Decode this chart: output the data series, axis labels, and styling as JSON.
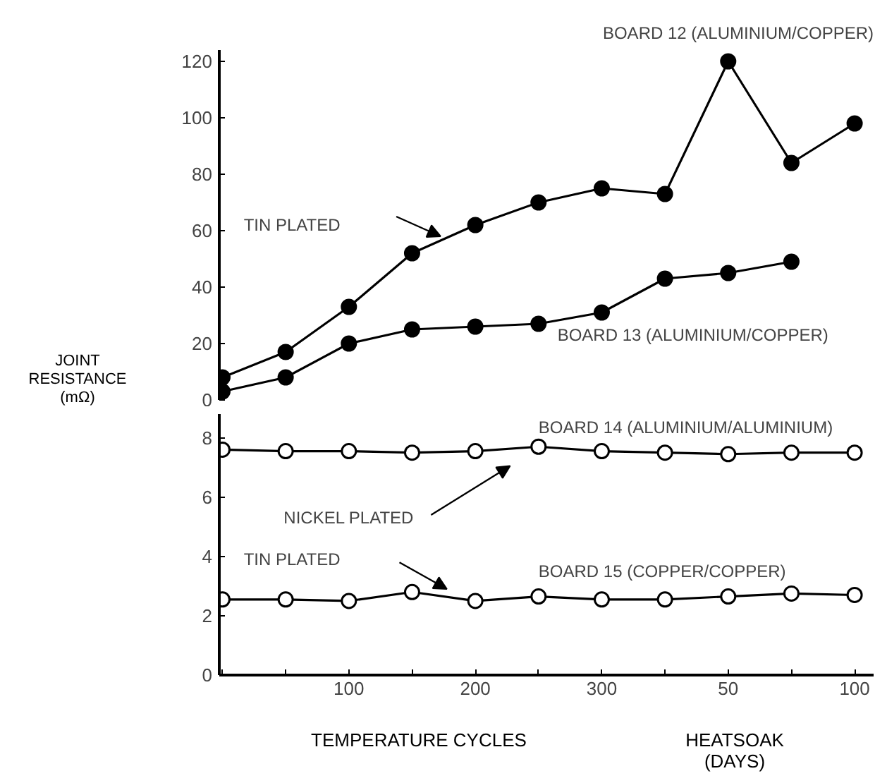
{
  "chart_data": [
    {
      "type": "line",
      "ylabel": "JOINT\nRESISTANCE\n(mΩ)",
      "categories": [
        null,
        null,
        "100",
        null,
        "200",
        null,
        "300",
        null,
        "50",
        null,
        "100"
      ],
      "series": [
        {
          "name": "BOARD 12 (ALUMINIUM/COPPER)",
          "color": "#000000",
          "values": [
            8,
            17,
            33,
            52,
            62,
            70,
            75,
            73,
            120,
            84,
            98
          ]
        },
        {
          "name": "BOARD 13 (ALUMINIUM/COPPER)",
          "color": "#000000",
          "values": [
            3,
            8,
            20,
            25,
            26,
            27,
            31,
            43,
            45,
            49,
            null
          ]
        }
      ],
      "ylim": [
        0,
        124
      ],
      "yticks": [
        0,
        20,
        40,
        60,
        80,
        100,
        120
      ],
      "tick_labels": "y",
      "grid": false,
      "marker": "circle",
      "annotations": [
        "TIN PLATED"
      ]
    },
    {
      "type": "line",
      "xlabel": "TEMPERATURE CYCLES",
      "categories": [
        null,
        null,
        "100",
        null,
        "200",
        null,
        "300",
        null,
        "50",
        null,
        "100"
      ],
      "series": [
        {
          "name": "BOARD 14 (ALUMINIUM/ALUMINIUM)",
          "color": "#000000",
          "colors": [
            "#ffffff",
            "#ffffff",
            "#ffffff",
            "#ffffff",
            "#ffffff",
            "#ffffff",
            "#ffffff",
            "#ffffff",
            "#ffffff",
            "#ffffff",
            "#ffffff"
          ],
          "values": [
            7.6,
            7.55,
            7.55,
            7.5,
            7.55,
            7.7,
            7.55,
            7.5,
            7.45,
            7.5,
            7.5
          ]
        },
        {
          "name": "BOARD 15 (COPPER/COPPER)",
          "color": "#000000",
          "colors": [
            "#ffffff",
            "#ffffff",
            "#ffffff",
            "#ffffff",
            "#ffffff",
            "#ffffff",
            "#ffffff",
            "#ffffff",
            "#ffffff",
            "#ffffff",
            "#ffffff"
          ],
          "values": [
            2.55,
            2.55,
            2.5,
            2.8,
            2.5,
            2.65,
            2.55,
            2.55,
            2.65,
            2.75,
            2.7
          ]
        }
      ],
      "ylim": [
        0,
        8.8
      ],
      "yticks": [
        0,
        2,
        4,
        6,
        8
      ],
      "grid": false,
      "marker": "circle",
      "annotations": [
        "NICKEL PLATED",
        "TIN PLATED",
        "HEATSOAK\n(DAYS)"
      ]
    }
  ]
}
